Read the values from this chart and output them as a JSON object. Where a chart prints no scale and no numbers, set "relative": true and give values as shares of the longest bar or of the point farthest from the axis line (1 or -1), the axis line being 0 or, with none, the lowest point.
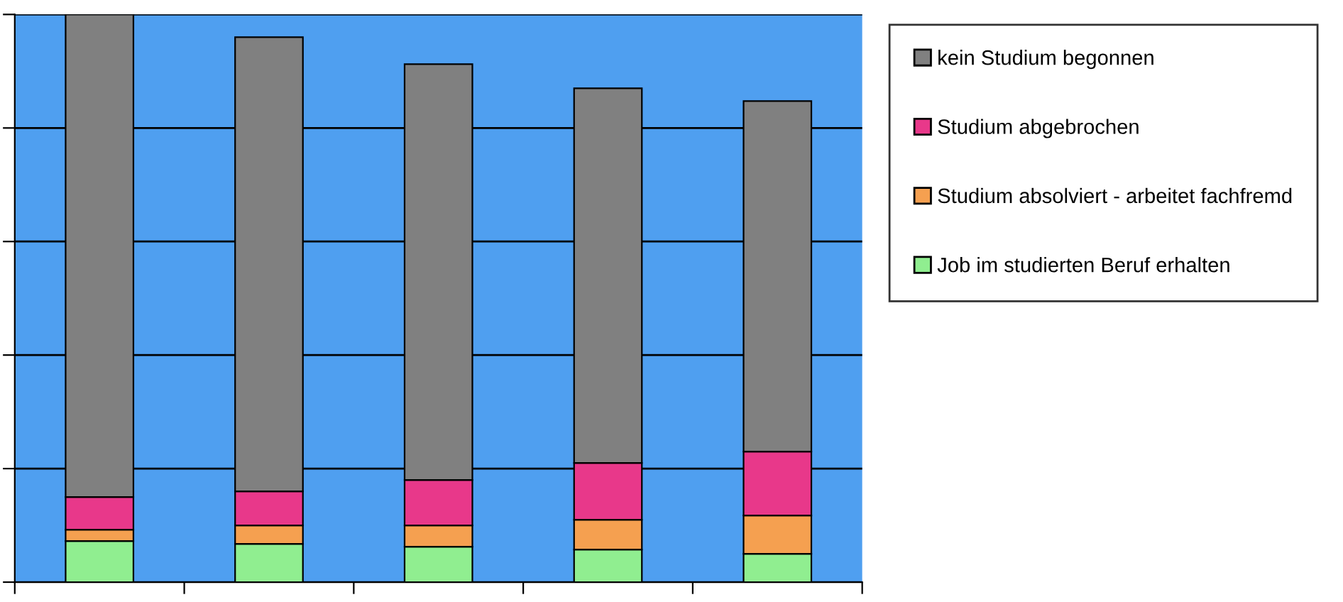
{
  "chart_data": {
    "type": "bar",
    "stacked": true,
    "relative": true,
    "categories": [
      null,
      null,
      null,
      null,
      null
    ],
    "series": [
      {
        "name": "Job im studierten Beruf erhalten",
        "color": "#90ee90",
        "values": [
          0.0725,
          0.0675,
          0.0625,
          0.0575,
          0.05
        ]
      },
      {
        "name": "Studium absolviert - arbeitet fachfremd",
        "color": "#f5a050",
        "values": [
          0.02,
          0.0325,
          0.0375,
          0.0525,
          0.0675
        ]
      },
      {
        "name": "Studium abgebrochen",
        "color": "#e8388a",
        "values": [
          0.0575,
          0.06,
          0.08,
          0.1,
          0.1125
        ]
      },
      {
        "name": "kein Studium begonnen",
        "color": "#808080",
        "values": [
          0.85,
          0.8,
          0.7325,
          0.66,
          0.6175
        ]
      }
    ],
    "grid": "y",
    "legend": "right"
  }
}
